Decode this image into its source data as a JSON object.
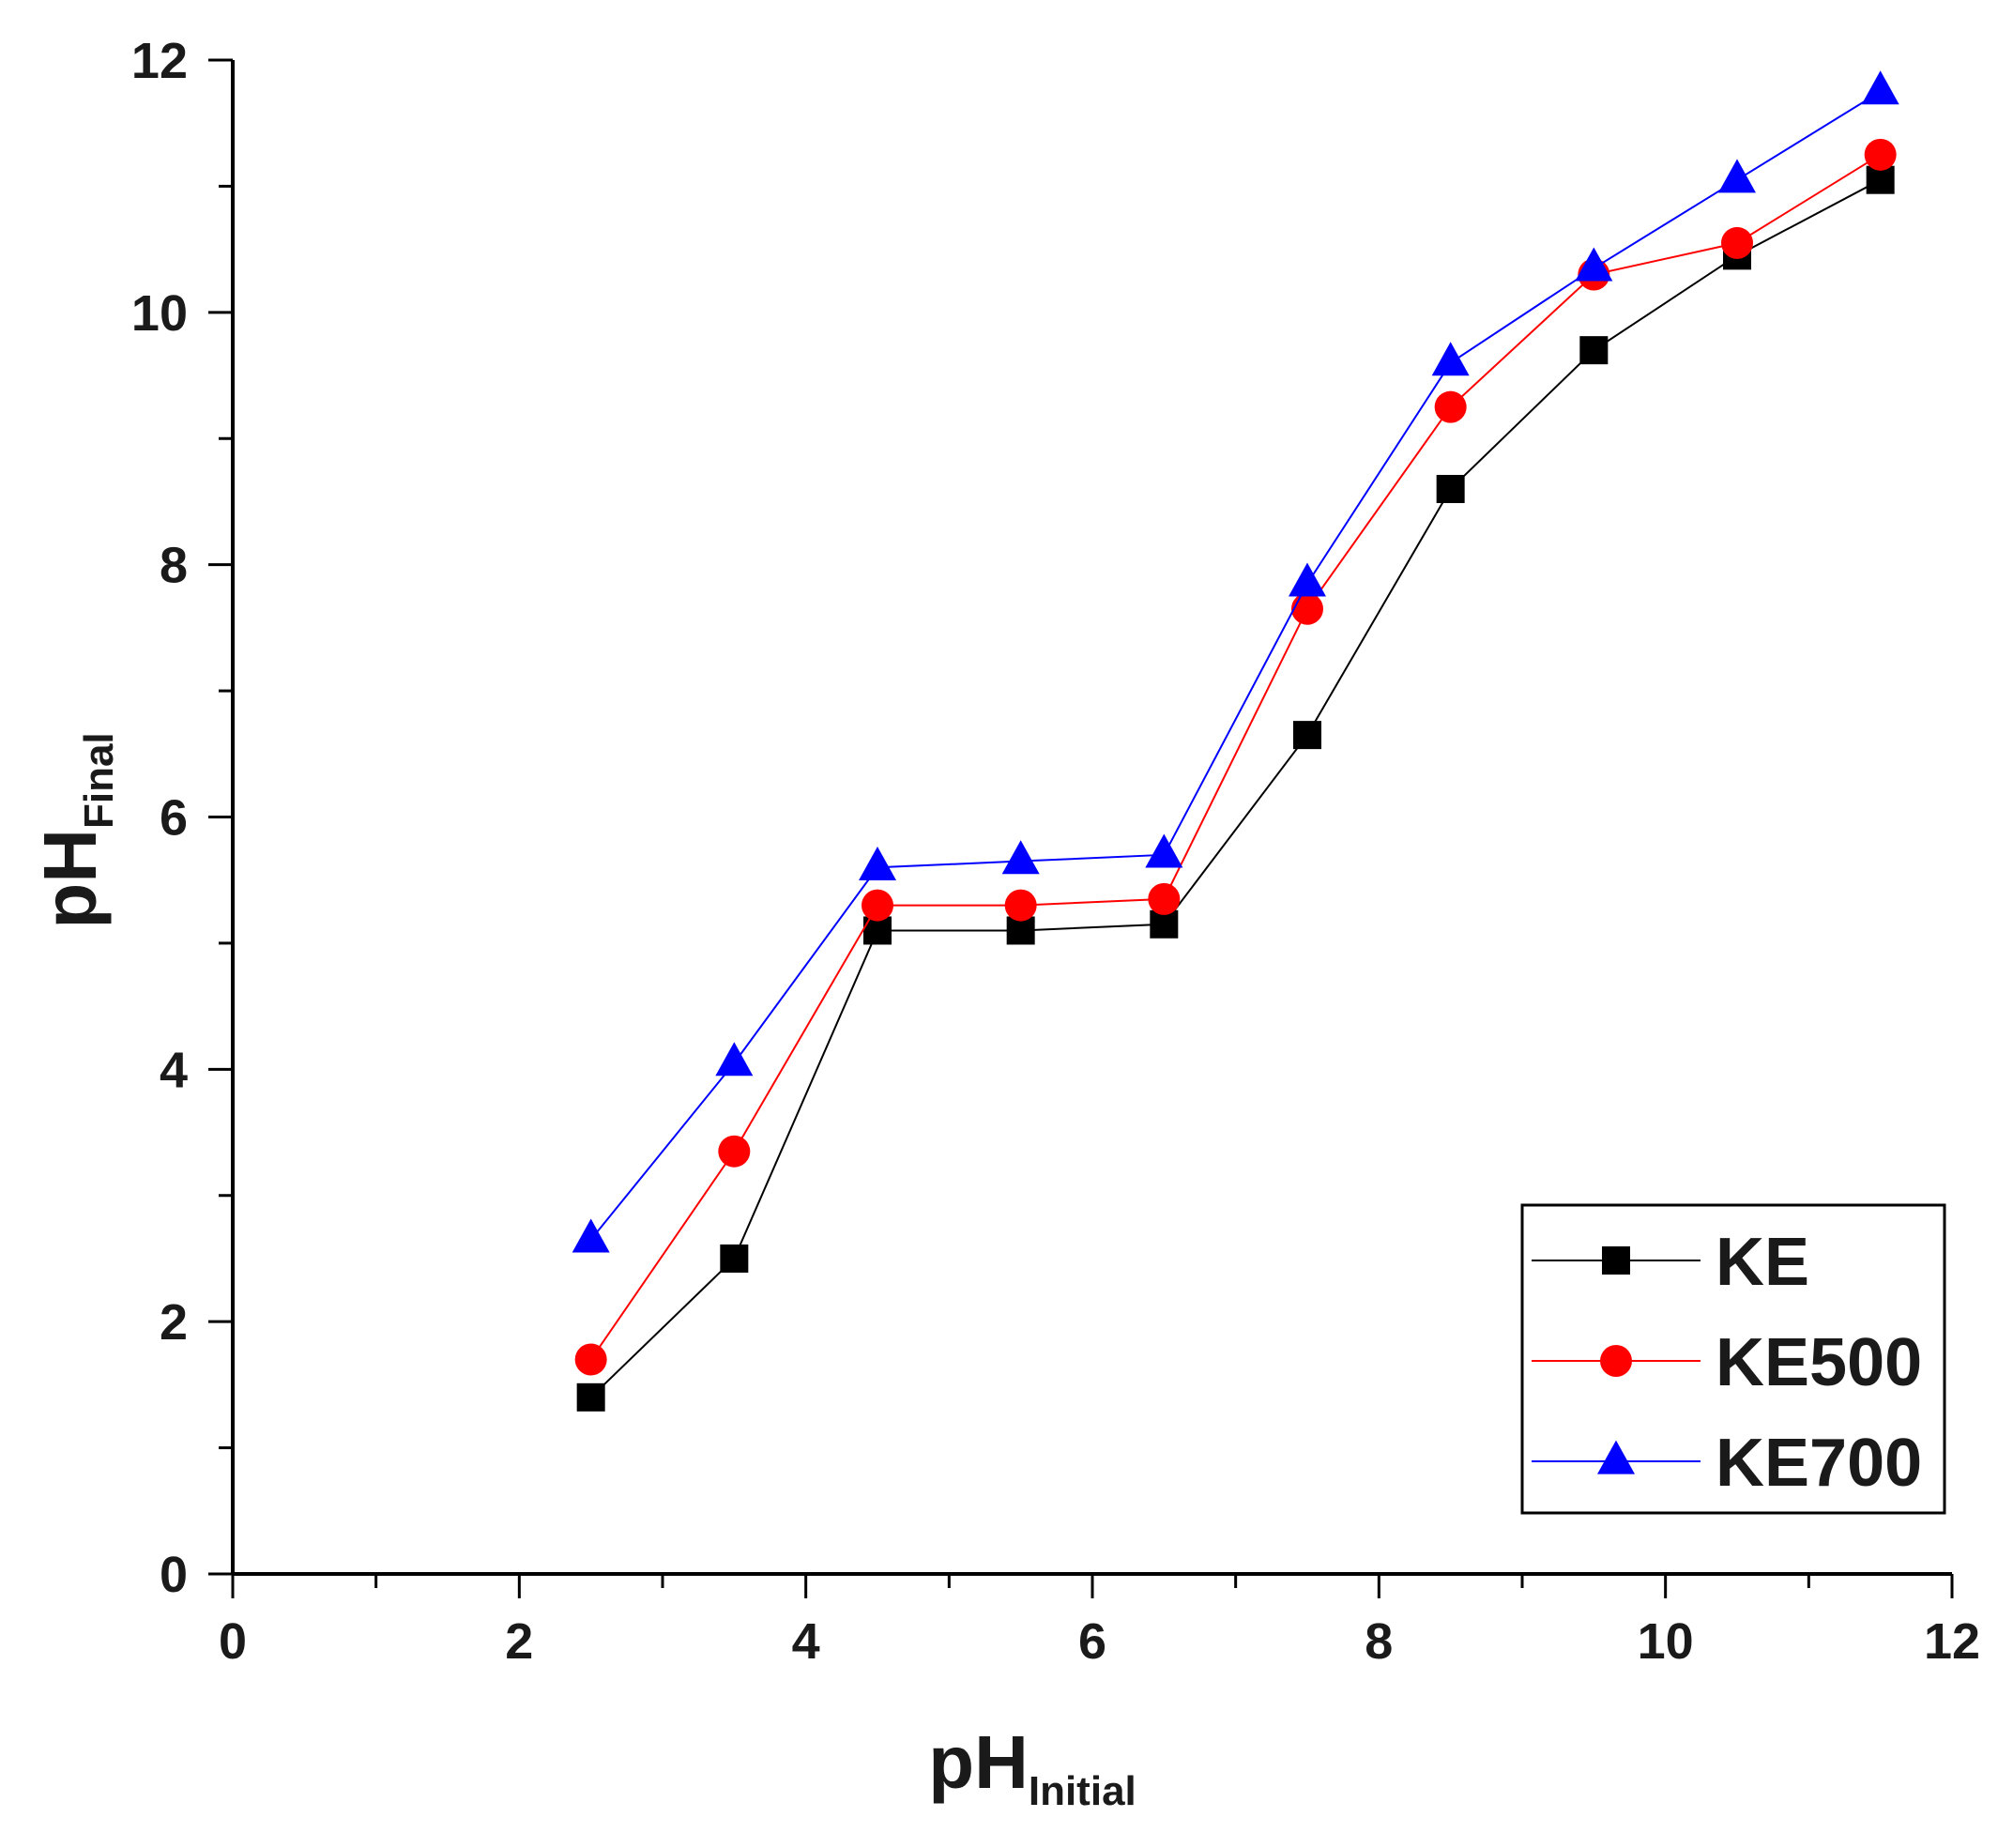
{
  "chart_data": {
    "type": "line",
    "xlabel": {
      "main": "pH",
      "sub": "Initial"
    },
    "ylabel": {
      "main": "pH",
      "sub": "Final"
    },
    "xlim": [
      0,
      12
    ],
    "ylim": [
      0,
      12
    ],
    "xticks": [
      0,
      2,
      4,
      6,
      8,
      10,
      12
    ],
    "yticks": [
      0,
      2,
      4,
      6,
      8,
      10,
      12
    ],
    "x_minor_step": 1,
    "y_minor_step": 1,
    "grid": false,
    "legend_position": "bottom-right",
    "x": [
      2.5,
      3.5,
      4.5,
      5.5,
      6.5,
      7.5,
      8.5,
      9.5,
      10.5,
      11.5
    ],
    "series": [
      {
        "name": "KE",
        "marker": "square",
        "color": "#000000",
        "values": [
          1.4,
          2.5,
          5.1,
          5.1,
          5.15,
          6.65,
          8.6,
          9.7,
          10.45,
          11.05
        ]
      },
      {
        "name": "KE500",
        "marker": "circle",
        "color": "#ff0000",
        "values": [
          1.7,
          3.35,
          5.3,
          5.3,
          5.35,
          7.65,
          9.25,
          10.3,
          10.55,
          11.25
        ]
      },
      {
        "name": "KE700",
        "marker": "triangle",
        "color": "#0000ff",
        "values": [
          2.65,
          4.05,
          5.6,
          5.65,
          5.7,
          7.85,
          9.6,
          10.35,
          11.05,
          11.75
        ]
      }
    ]
  }
}
